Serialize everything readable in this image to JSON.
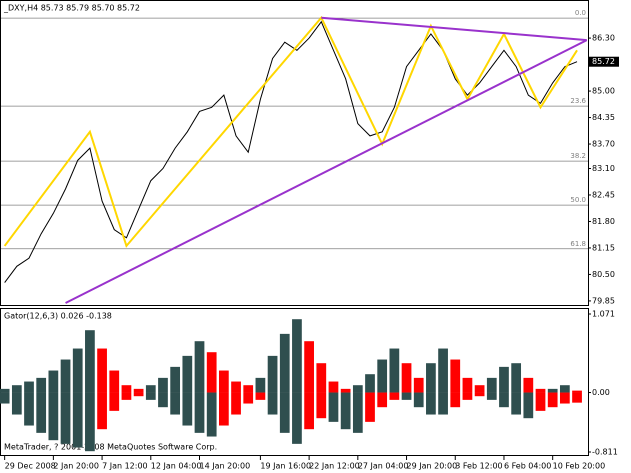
{
  "chart_data": [
    {
      "type": "price",
      "title": "_DXY,H4 85.73 85.79 85.70 85.72",
      "values": [
        80.3,
        80.7,
        80.9,
        81.5,
        82.0,
        82.6,
        83.3,
        83.6,
        82.3,
        81.6,
        81.4,
        82.1,
        82.8,
        83.1,
        83.6,
        84.0,
        84.5,
        84.6,
        84.9,
        83.9,
        83.5,
        84.8,
        85.8,
        86.2,
        86.0,
        86.3,
        86.7,
        86.0,
        85.3,
        84.2,
        83.9,
        84.0,
        84.6,
        85.6,
        86.0,
        86.4,
        86.0,
        85.3,
        84.9,
        85.2,
        85.6,
        86.0,
        85.6,
        84.9,
        84.7,
        85.2,
        85.6,
        85.72
      ],
      "color": "#000000",
      "xlim": [
        -0.3,
        47.9
      ],
      "ylim": [
        79.75,
        87.21
      ],
      "yticks": [
        {
          "value": 86.3,
          "label": "86.30"
        },
        {
          "value": 85.0,
          "label": "85.00"
        },
        {
          "value": 84.35,
          "label": "84.35"
        },
        {
          "value": 83.7,
          "label": "83.70"
        },
        {
          "value": 83.1,
          "label": "83.10"
        },
        {
          "value": 82.45,
          "label": "82.45"
        },
        {
          "value": 81.8,
          "label": "81.80"
        },
        {
          "value": 81.15,
          "label": "81.15"
        },
        {
          "value": 80.5,
          "label": "80.50"
        },
        {
          "value": 79.85,
          "label": "79.85"
        }
      ],
      "current_price": {
        "value": 85.72,
        "label": "85.72"
      },
      "fibo_levels": [
        {
          "label": "0.0",
          "price": 86.79
        },
        {
          "label": "23.6",
          "price": 84.63
        },
        {
          "label": "38.2",
          "price": 83.28
        },
        {
          "label": "50.0",
          "price": 82.2
        },
        {
          "label": "61.8",
          "price": 81.13
        }
      ],
      "zigzag": {
        "color": "#ffd700",
        "x": [
          0,
          7,
          10,
          26,
          31,
          35,
          38,
          41,
          44,
          47
        ],
        "values": [
          81.2,
          84.0,
          81.2,
          86.8,
          83.7,
          86.6,
          84.8,
          86.4,
          84.6,
          86.0
        ]
      },
      "trendlines": [
        {
          "color": "#9932cc",
          "x": [
            5,
            47.8
          ],
          "values": [
            79.8,
            86.25
          ]
        },
        {
          "color": "#9932cc",
          "x": [
            26,
            47.8
          ],
          "values": [
            86.8,
            86.25
          ]
        }
      ],
      "xticks": [
        {
          "value": 0,
          "label": "29 Dec 2008"
        },
        {
          "value": 4,
          "label": "2 Jan 20:00"
        },
        {
          "value": 8,
          "label": "7 Jan 12:00"
        },
        {
          "value": 12,
          "label": "12 Jan 04:00"
        },
        {
          "value": 16,
          "label": "14 Jan 20:00"
        },
        {
          "value": 21,
          "label": "19 Jan 16:00"
        },
        {
          "value": 25,
          "label": "22 Jan 12:00"
        },
        {
          "value": 29,
          "label": "27 Jan 04:00"
        },
        {
          "value": 33,
          "label": "29 Jan 20:00"
        },
        {
          "value": 37,
          "label": "3 Feb 12:00"
        },
        {
          "value": 41,
          "label": "6 Feb 04:00"
        },
        {
          "value": 45,
          "label": "10 Feb 20:00"
        }
      ]
    },
    {
      "type": "gator",
      "title": "Gator(12,6,3) 0.026 -0.138",
      "up_color": "#2f4f4f",
      "down_color": "#ff0000",
      "series": [
        {
          "values": [
            0.05,
            0.1,
            0.15,
            0.2,
            0.3,
            0.45,
            0.6,
            0.85,
            0.6,
            0.3,
            0.1,
            0.05,
            0.1,
            0.2,
            0.35,
            0.5,
            0.7,
            0.55,
            0.3,
            0.15,
            0.1,
            0.2,
            0.5,
            0.8,
            1.0,
            0.7,
            0.4,
            0.15,
            0.05,
            0.1,
            0.25,
            0.45,
            0.6,
            0.4,
            0.2,
            0.4,
            0.6,
            0.45,
            0.2,
            0.1,
            0.2,
            0.35,
            0.4,
            0.2,
            0.05,
            0.05,
            0.1,
            0.026
          ]
        },
        {
          "values": [
            -0.15,
            -0.3,
            -0.45,
            -0.55,
            -0.65,
            -0.7,
            -0.75,
            -0.8,
            -0.5,
            -0.25,
            -0.1,
            -0.05,
            -0.1,
            -0.2,
            -0.3,
            -0.45,
            -0.55,
            -0.6,
            -0.45,
            -0.3,
            -0.15,
            -0.1,
            -0.3,
            -0.55,
            -0.7,
            -0.5,
            -0.35,
            -0.4,
            -0.5,
            -0.55,
            -0.4,
            -0.2,
            -0.1,
            -0.1,
            -0.2,
            -0.3,
            -0.3,
            -0.2,
            -0.1,
            -0.05,
            -0.1,
            -0.2,
            -0.3,
            -0.35,
            -0.25,
            -0.2,
            -0.15,
            -0.138
          ]
        }
      ],
      "ylim": [
        -0.811,
        1.071
      ],
      "yticks": [
        1.071,
        {
          "value": 0,
          "label": "0.00"
        },
        -0.811
      ],
      "copyright": "MetaTrader, ? 2001-2008 MetaQuotes Software Corp."
    }
  ]
}
